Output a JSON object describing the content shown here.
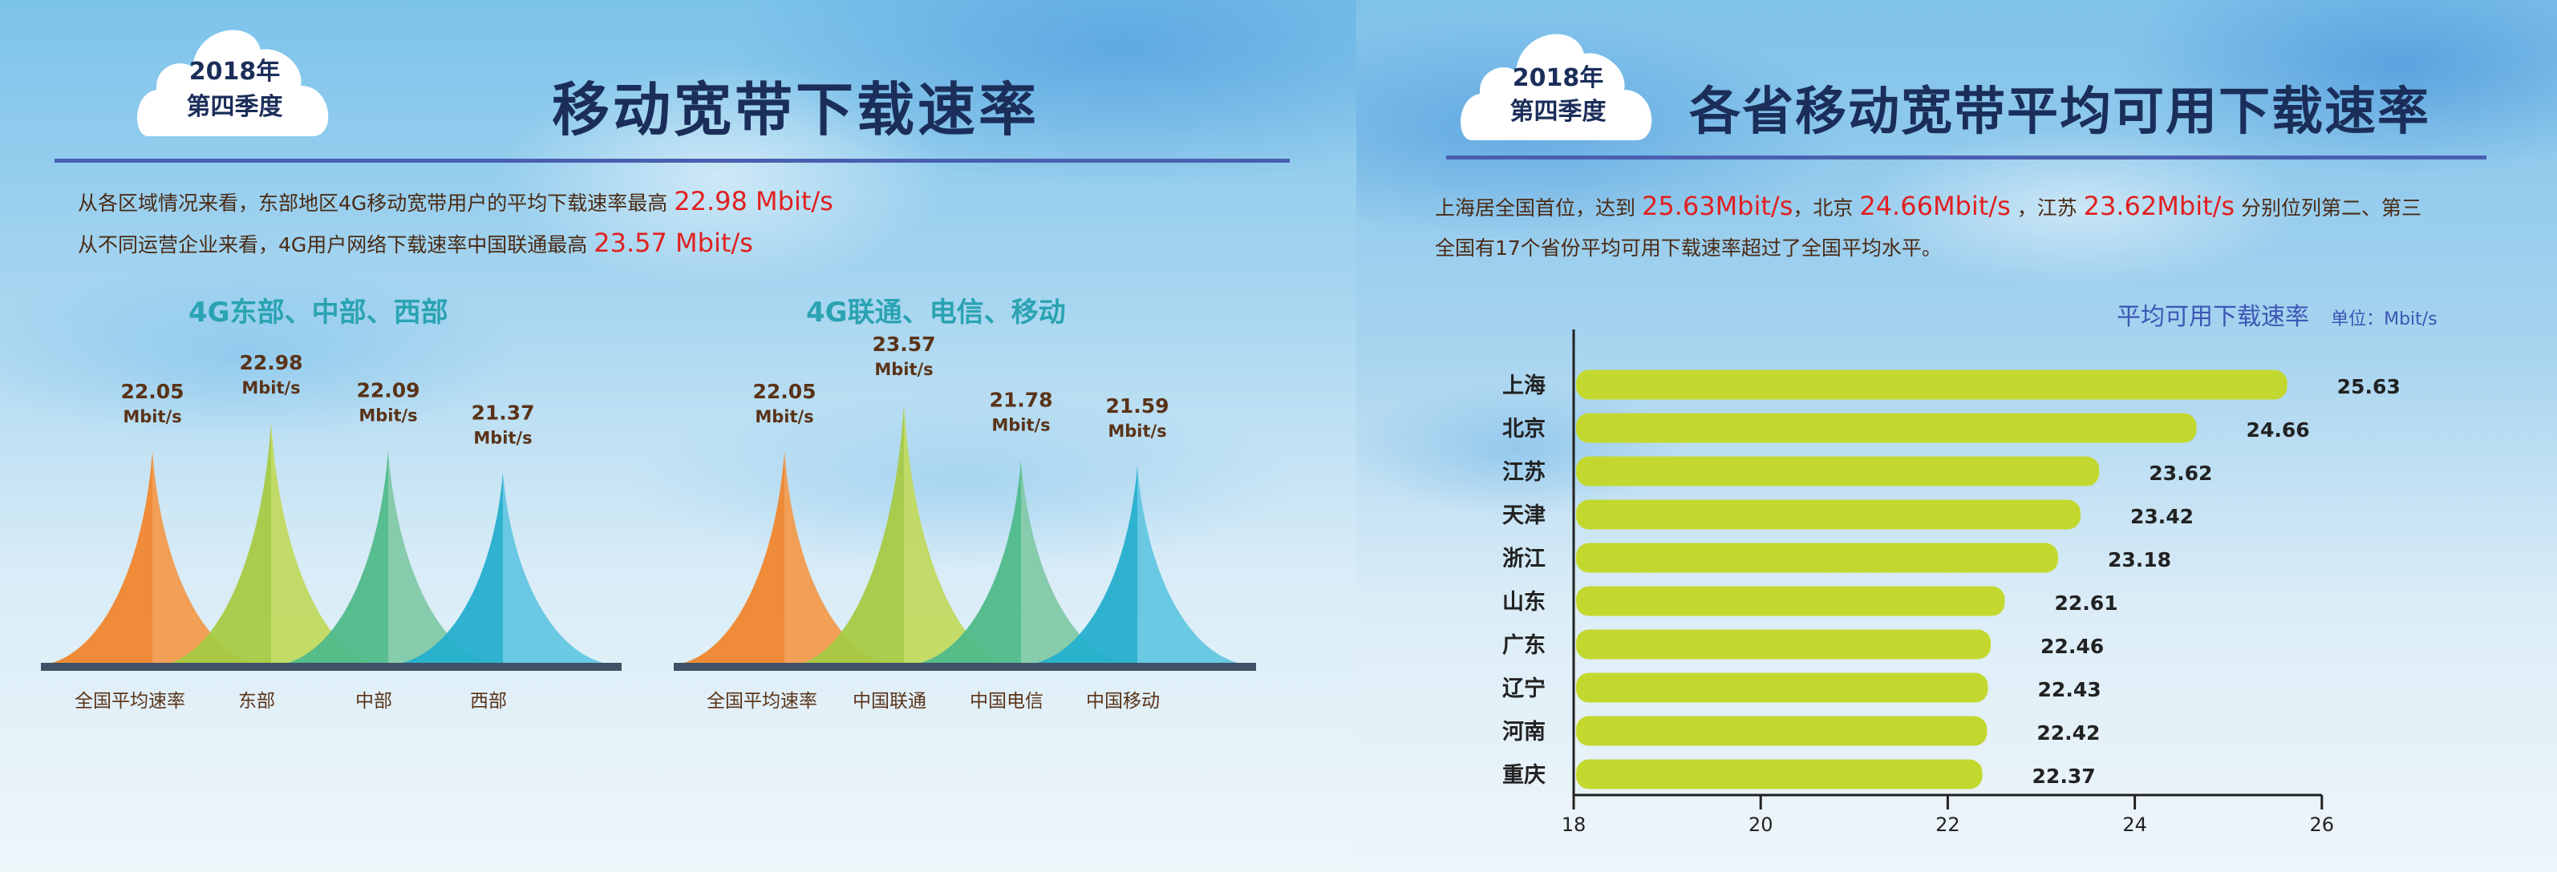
{
  "left": {
    "badge": {
      "year": "2018年",
      "quarter": "第四季度"
    },
    "title": "移动宽带下载速率",
    "lines": [
      [
        {
          "t": "从各区域情况来看，东部地区4G移动宽带用户的平均下载速率最高 "
        },
        {
          "t": "22.98 Mbit/s",
          "red": true
        }
      ],
      [
        {
          "t": "从不同运营企业来看，4G用户网络下载速率中国联通最高 "
        },
        {
          "t": "23.57 Mbit/s",
          "red": true
        }
      ]
    ],
    "chart1_title": "4G东部、中部、西部",
    "chart2_title": "4G联通、电信、移动"
  },
  "right": {
    "badge": {
      "year": "2018年",
      "quarter": "第四季度"
    },
    "title": "各省移动宽带平均可用下载速率",
    "lines": [
      [
        {
          "t": "上海居全国首位，达到  "
        },
        {
          "t": "25.63Mbit/s",
          "red": true
        },
        {
          "t": "，北京  "
        },
        {
          "t": "24.66Mbit/s",
          "red": true
        },
        {
          "t": " ，江苏 "
        },
        {
          "t": "23.62Mbit/s",
          "red": true
        },
        {
          "t": " 分别位列第二、第三"
        }
      ],
      [
        {
          "t": "全国有17个省份平均可用下载速率超过了全国平均水平。"
        }
      ]
    ],
    "chart_title": "平均可用下载速率",
    "chart_unit": "单位：Mbit/s"
  },
  "colors": {
    "title": "#1b2e5a",
    "rule": "#4a5fb0",
    "highlight": "#e02020",
    "text": "#4a2a14",
    "bar": "#c3d82f",
    "baseline": "#3f5166"
  },
  "chart_data": [
    {
      "type": "area",
      "title": "4G东部、中部、西部",
      "unit": "Mbit/s",
      "categories": [
        "全国平均速率",
        "东部",
        "中部",
        "西部"
      ],
      "values": [
        22.05,
        22.98,
        22.09,
        21.37
      ],
      "colors": [
        [
          "#f0862e",
          "#f29b4e"
        ],
        [
          "#a7ca45",
          "#c1d95f"
        ],
        [
          "#50bb8a",
          "#82c9a8"
        ],
        [
          "#25afcd",
          "#63c6e2"
        ]
      ]
    },
    {
      "type": "area",
      "title": "4G联通、电信、移动",
      "unit": "Mbit/s",
      "categories": [
        "全国平均速率",
        "中国联通",
        "中国电信",
        "中国移动"
      ],
      "values": [
        22.05,
        23.57,
        21.78,
        21.59
      ],
      "colors": [
        [
          "#f0862e",
          "#f29b4e"
        ],
        [
          "#a7ca45",
          "#c1d95f"
        ],
        [
          "#50bb8a",
          "#82c9a8"
        ],
        [
          "#25afcd",
          "#63c6e2"
        ]
      ]
    },
    {
      "type": "bar",
      "orientation": "horizontal",
      "title": "平均可用下载速率",
      "unit": "Mbit/s",
      "categories": [
        "上海",
        "北京",
        "江苏",
        "天津",
        "浙江",
        "山东",
        "广东",
        "辽宁",
        "河南",
        "重庆"
      ],
      "values": [
        25.63,
        24.66,
        23.62,
        23.42,
        23.18,
        22.61,
        22.46,
        22.43,
        22.42,
        22.37
      ],
      "xlim": [
        18,
        26
      ],
      "xticks": [
        18,
        20,
        22,
        24,
        26
      ],
      "grid": false
    }
  ]
}
